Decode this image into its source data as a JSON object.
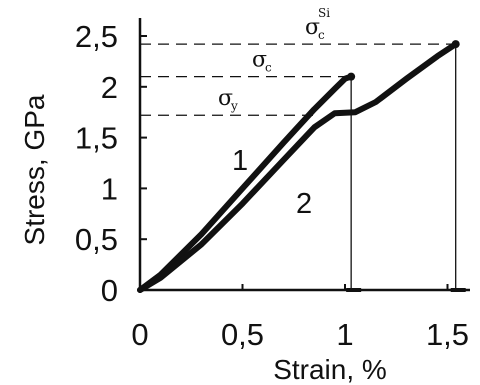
{
  "chart_data": {
    "type": "line",
    "xlabel": "Strain, %",
    "ylabel": "Stress, GPa",
    "xlim": [
      0,
      1.6
    ],
    "ylim": [
      0,
      2.5
    ],
    "x_ticks": [
      "0",
      "0,5",
      "1",
      "1,5"
    ],
    "y_ticks": [
      "0",
      "0,5",
      "1",
      "1,5",
      "2",
      "2,5"
    ],
    "grid": false,
    "series": [
      {
        "name": "1",
        "x": [
          0,
          0.1,
          0.3,
          0.5,
          0.7,
          0.85,
          0.95,
          1.0,
          1.03
        ],
        "y": [
          0,
          0.15,
          0.55,
          1.0,
          1.45,
          1.78,
          1.98,
          2.08,
          2.1
        ]
      },
      {
        "name": "2",
        "x": [
          0,
          0.1,
          0.3,
          0.5,
          0.7,
          0.85,
          0.95,
          1.05,
          1.15,
          1.3,
          1.45,
          1.54
        ],
        "y": [
          0,
          0.12,
          0.45,
          0.85,
          1.28,
          1.6,
          1.74,
          1.75,
          1.85,
          2.08,
          2.3,
          2.42
        ]
      }
    ],
    "drops": [
      {
        "x": 1.03,
        "y": 2.1
      },
      {
        "x": 1.54,
        "y": 2.42
      }
    ],
    "annotations": [
      {
        "label": "σ",
        "sub": "y",
        "sup": "",
        "y": 1.72
      },
      {
        "label": "σ",
        "sub": "c",
        "sup": "",
        "y": 2.1
      },
      {
        "label": "σ",
        "sub": "c",
        "sup": "Si",
        "y": 2.42
      }
    ]
  }
}
